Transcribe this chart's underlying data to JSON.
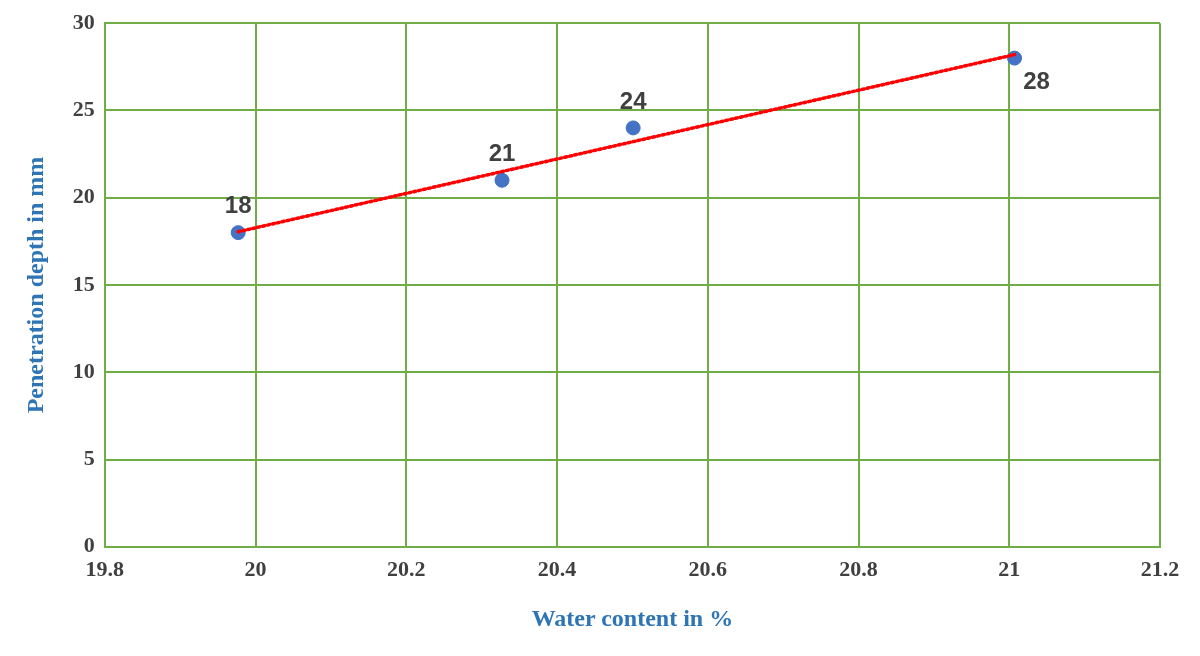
{
  "chart_data": {
    "type": "scatter",
    "xlabel": "Water content in %",
    "ylabel": "Penetration depth in mm",
    "x": [
      19.977,
      20.327,
      20.501,
      21.007
    ],
    "series": [
      {
        "color": "#4472c4",
        "values": [
          18,
          21,
          24,
          28
        ],
        "value_labels": [
          "18",
          "21",
          "24",
          "28"
        ],
        "marker": "circle"
      },
      {
        "type": "line",
        "color": "#ff0000",
        "x": [
          19.977,
          21.007
        ],
        "values": [
          18.05,
          28.2
        ],
        "line_style": "dotted",
        "marker": "none"
      }
    ],
    "xlim": [
      19.8,
      21.2
    ],
    "xticks": [
      19.8,
      20,
      20.2,
      20.4,
      20.6,
      20.8,
      21,
      21.2
    ],
    "ylim": [
      0,
      30
    ],
    "yticks": [
      0,
      5,
      10,
      15,
      20,
      25,
      30
    ],
    "grid": true,
    "legend": false
  }
}
